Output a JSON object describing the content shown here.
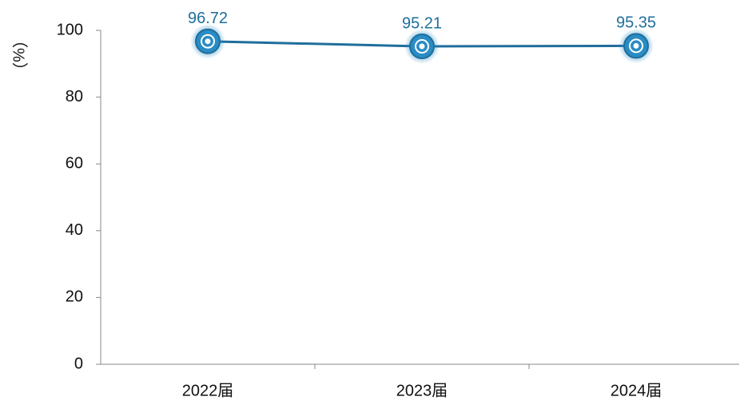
{
  "chart_data": {
    "type": "line",
    "y_label": "（%）",
    "categories": [
      "2022届",
      "2023届",
      "2024届"
    ],
    "series": [
      {
        "name": null,
        "color": "#1f6e9c",
        "values": [
          96.72,
          95.21,
          95.35
        ]
      }
    ],
    "ylim": [
      0,
      100
    ],
    "yticks": [
      0,
      20,
      40,
      60,
      80,
      100
    ],
    "grid": false
  }
}
